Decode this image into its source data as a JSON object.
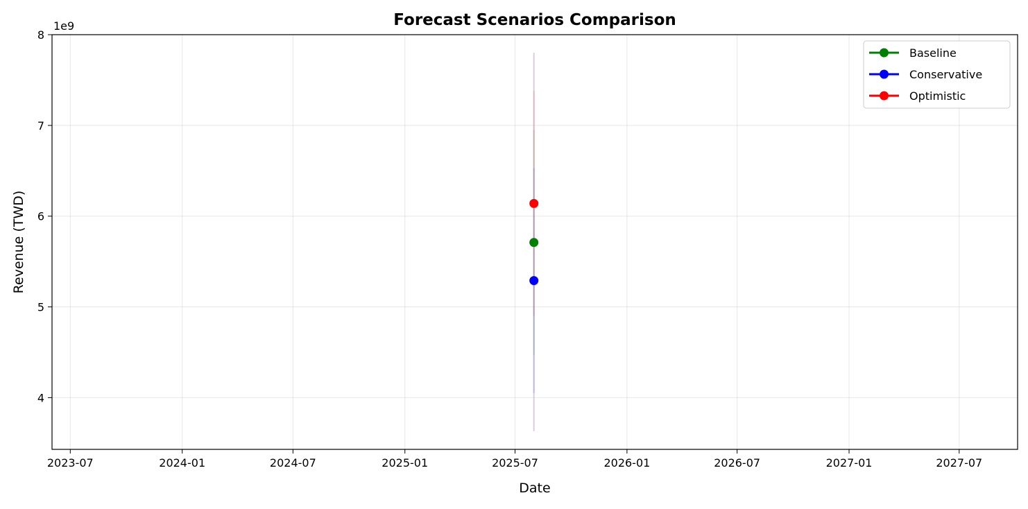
{
  "chart_data": {
    "type": "line",
    "title": "Forecast Scenarios Comparison",
    "xlabel": "Date",
    "ylabel": "Revenue (TWD)",
    "y_offset_text": "1e9",
    "x_ticks": [
      "2023-07",
      "2024-01",
      "2024-07",
      "2025-01",
      "2025-07",
      "2026-01",
      "2026-07",
      "2027-01",
      "2027-07"
    ],
    "y_ticks": [
      4,
      5,
      6,
      7,
      8
    ],
    "xlim": [
      "2023-06-01",
      "2027-10-05"
    ],
    "ylim": [
      3.43,
      8.0
    ],
    "y_scale_multiplier": 1000000000,
    "grid": true,
    "legend_position": "top-right",
    "series": [
      {
        "name": "Baseline",
        "color": "#008000",
        "x": [
          "2025-08-01"
        ],
        "y": [
          5.71
        ],
        "interval": [
          4.47,
          6.95
        ]
      },
      {
        "name": "Conservative",
        "color": "#0000ff",
        "x": [
          "2025-08-01"
        ],
        "y": [
          5.29
        ],
        "interval": [
          4.05,
          6.53
        ]
      },
      {
        "name": "Optimistic",
        "color": "#ff0000",
        "x": [
          "2025-08-01"
        ],
        "y": [
          6.14
        ],
        "interval": [
          4.9,
          7.38
        ]
      }
    ],
    "outer_interval": {
      "x": "2025-08-01",
      "range": [
        3.63,
        7.8
      ]
    }
  }
}
